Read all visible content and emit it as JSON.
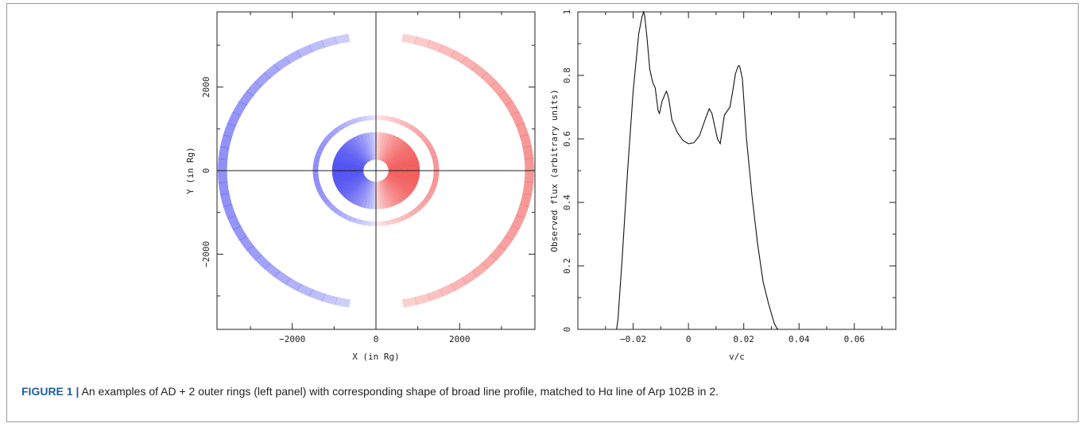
{
  "figure": {
    "label": "FIGURE 1",
    "separator": "|",
    "caption": "An examples of AD + 2 outer rings (left panel) with corresponding shape of broad line profile, matched to Hα line of Arp 102B in 2."
  },
  "left_panel": {
    "xlabel": "X (in Rg)",
    "ylabel": "Y (in Rg)",
    "x_ticks": [
      "−2000",
      "0",
      "2000"
    ],
    "y_ticks": [
      "−2000",
      "0",
      "2000"
    ],
    "colors": {
      "blue_side": "#3b3bf0",
      "red_side": "#f04848"
    }
  },
  "right_panel": {
    "xlabel": "v/c",
    "ylabel": "Observed flux (arbitrary units)",
    "x_ticks": [
      "−0.02",
      "0",
      "0.02",
      "0.04",
      "0.06"
    ],
    "y_ticks": [
      "0",
      "0.2",
      "0.4",
      "0.6",
      "0.8",
      "1"
    ]
  },
  "chart_data": [
    {
      "type": "image",
      "panel": "left",
      "xlabel": "X (in Rg)",
      "ylabel": "Y (in Rg)",
      "xlim": [
        -3800,
        3800
      ],
      "ylim": [
        -3800,
        3800
      ],
      "components": [
        {
          "name": "inner disc",
          "r_in": 300,
          "r_out": 1050,
          "aspect": 0.88
        },
        {
          "name": "ring 1",
          "r_in": 1380,
          "r_out": 1510,
          "aspect": 0.88
        },
        {
          "name": "ring 2",
          "r_in": 3560,
          "r_out": 3780,
          "aspect": 0.88,
          "gap_angle_deg": 10
        }
      ]
    },
    {
      "type": "line",
      "panel": "right",
      "xlabel": "v/c",
      "ylabel": "Observed flux (arbitrary units)",
      "xlim": [
        -0.04,
        0.075
      ],
      "ylim": [
        0,
        1.0
      ],
      "series": [
        {
          "x": [
            -0.026,
            -0.0255,
            -0.024,
            -0.022,
            -0.02,
            -0.018,
            -0.0168,
            -0.0162,
            -0.0158,
            -0.015,
            -0.014,
            -0.013,
            -0.012,
            -0.011,
            -0.0105,
            -0.0095,
            -0.008,
            -0.0075,
            -0.007,
            -0.006,
            -0.004,
            -0.002,
            0.0,
            0.002,
            0.004,
            0.006,
            0.0075,
            0.0085,
            0.0095,
            0.0105,
            0.0115,
            0.013,
            0.015,
            0.016,
            0.017,
            0.018,
            0.0185,
            0.0195,
            0.021,
            0.023,
            0.025,
            0.027,
            0.029,
            0.031,
            0.032,
            0.0325
          ],
          "y": [
            0.0,
            0.03,
            0.22,
            0.5,
            0.75,
            0.93,
            0.985,
            1.0,
            0.985,
            0.92,
            0.82,
            0.78,
            0.76,
            0.69,
            0.68,
            0.72,
            0.75,
            0.74,
            0.72,
            0.66,
            0.62,
            0.595,
            0.585,
            0.588,
            0.61,
            0.66,
            0.695,
            0.68,
            0.64,
            0.6,
            0.585,
            0.675,
            0.7,
            0.75,
            0.805,
            0.83,
            0.83,
            0.79,
            0.6,
            0.42,
            0.27,
            0.15,
            0.08,
            0.02,
            0.003,
            0.0
          ]
        }
      ]
    }
  ]
}
